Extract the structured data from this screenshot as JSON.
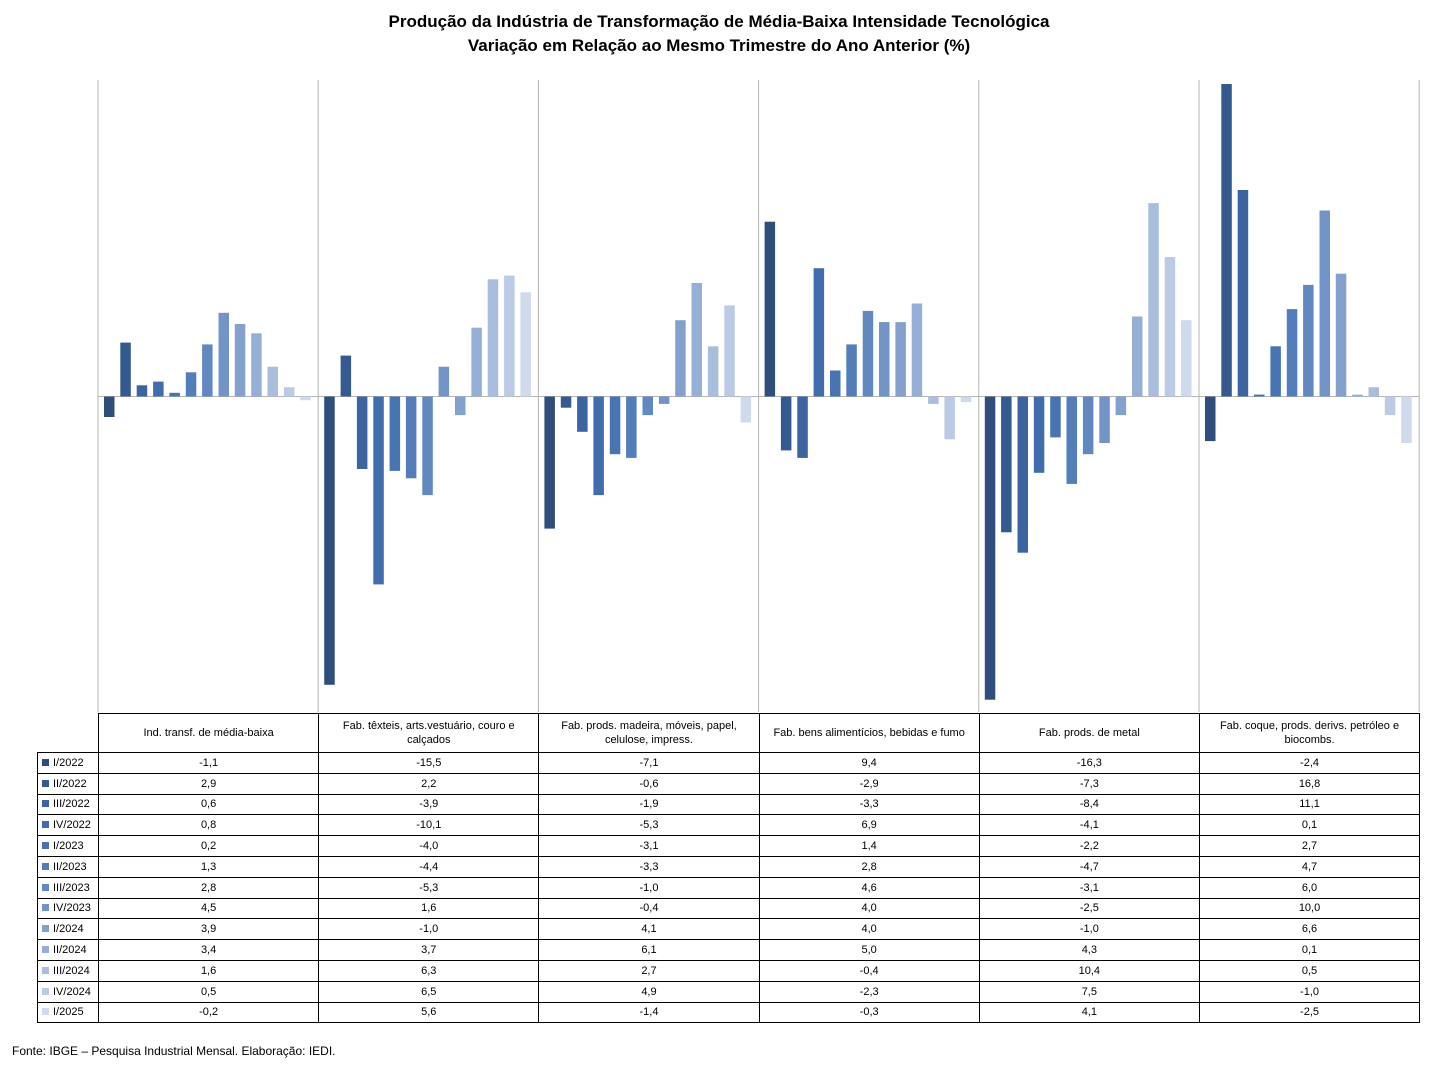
{
  "chart_data": {
    "type": "bar",
    "title": "Produção da Indústria de Transformação de Média-Baixa Intensidade Tecnológica",
    "subtitle": "Variação em Relação ao Mesmo Trimestre do Ano Anterior (%)",
    "categories": [
      "Ind. transf. de média-baixa",
      "Fab. têxteis, arts.vestuário, couro e calçados",
      "Fab. prods. madeira, móveis, papel, celulose, impress.",
      "Fab. bens alimentícios, bebidas e fumo",
      "Fab. prods. de metal",
      "Fab. coque, prods. derivs. petróleo e biocombs."
    ],
    "series": [
      {
        "name": "I/2022",
        "color": "#2f4e7c",
        "values": [
          "-1,1",
          "-15,5",
          "-7,1",
          "9,4",
          "-16,3",
          "-2,4"
        ]
      },
      {
        "name": "II/2022",
        "color": "#355a8f",
        "values": [
          "2,9",
          "2,2",
          "-0,6",
          "-2,9",
          "-7,3",
          "16,8"
        ]
      },
      {
        "name": "III/2022",
        "color": "#3b64a0",
        "values": [
          "0,6",
          "-3,9",
          "-1,9",
          "-3,3",
          "-8,4",
          "11,1"
        ]
      },
      {
        "name": "IV/2022",
        "color": "#416dac",
        "values": [
          "0,8",
          "-10,1",
          "-5,3",
          "6,9",
          "-4,1",
          "0,1"
        ]
      },
      {
        "name": "I/2023",
        "color": "#4874b2",
        "values": [
          "0,2",
          "-4,0",
          "-3,1",
          "1,4",
          "-2,2",
          "2,7"
        ]
      },
      {
        "name": "II/2023",
        "color": "#537eb9",
        "values": [
          "1,3",
          "-4,4",
          "-3,3",
          "2,8",
          "-4,7",
          "4,7"
        ]
      },
      {
        "name": "III/2023",
        "color": "#6288c0",
        "values": [
          "2,8",
          "-5,3",
          "-1,0",
          "4,6",
          "-3,1",
          "6,0"
        ]
      },
      {
        "name": "IV/2023",
        "color": "#7394c7",
        "values": [
          "4,5",
          "1,6",
          "-0,4",
          "4,0",
          "-2,5",
          "10,0"
        ]
      },
      {
        "name": "I/2024",
        "color": "#84a1ce",
        "values": [
          "3,9",
          "-1,0",
          "4,1",
          "4,0",
          "-1,0",
          "6,6"
        ]
      },
      {
        "name": "II/2024",
        "color": "#96afd6",
        "values": [
          "3,4",
          "3,7",
          "6,1",
          "5,0",
          "4,3",
          "0,1"
        ]
      },
      {
        "name": "III/2024",
        "color": "#a9bedd",
        "values": [
          "1,6",
          "6,3",
          "2,7",
          "-0,4",
          "10,4",
          "0,5"
        ]
      },
      {
        "name": "IV/2024",
        "color": "#bccbe5",
        "values": [
          "0,5",
          "6,5",
          "4,9",
          "-2,3",
          "7,5",
          "-1,0"
        ]
      },
      {
        "name": "I/2025",
        "color": "#cfdaed",
        "values": [
          "-0,2",
          "5,6",
          "-1,4",
          "-0,3",
          "4,1",
          "-2,5"
        ]
      }
    ],
    "ylim": [
      -16.5,
      16.8
    ],
    "grid": false,
    "legend": "table-below"
  },
  "source": "Fonte: IBGE – Pesquisa Industrial Mensal. Elaboração: IEDI."
}
